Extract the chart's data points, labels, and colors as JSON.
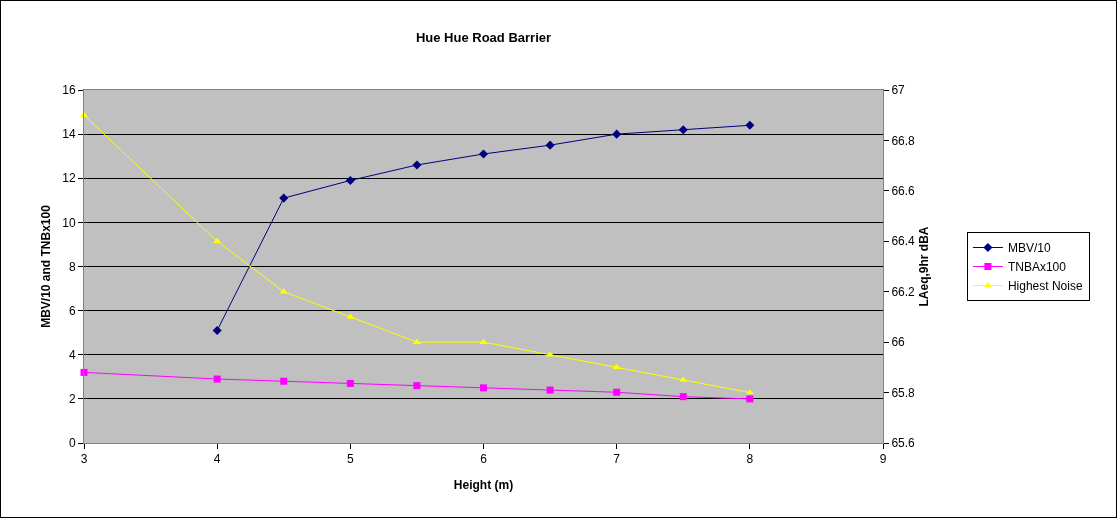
{
  "chart_data": {
    "type": "line",
    "title": "Hue Hue Road Barrier",
    "xlabel": "Height (m)",
    "ylabel": "MBV/10 and TNBx100",
    "y2label": "LAeq,9hr dBA",
    "xlim": [
      3,
      9
    ],
    "xticks": [
      3,
      4,
      5,
      6,
      7,
      8,
      9
    ],
    "ylim": [
      0,
      16
    ],
    "yticks": [
      0,
      2,
      4,
      6,
      8,
      10,
      12,
      14,
      16
    ],
    "y2lim": [
      65.6,
      67
    ],
    "y2ticks": [
      {
        "value": 65.6,
        "label": "65.6"
      },
      {
        "value": 65.8,
        "label": "65.8"
      },
      {
        "value": 66,
        "label": "66"
      },
      {
        "value": 66.2,
        "label": "66.2"
      },
      {
        "value": 66.4,
        "label": "66.4"
      },
      {
        "value": 66.6,
        "label": "66.6"
      },
      {
        "value": 66.8,
        "label": "66.8"
      },
      {
        "value": 67,
        "label": "67"
      }
    ],
    "grid": "y",
    "legend": "right",
    "line_style": "solid",
    "series": [
      {
        "name": "MBV/10",
        "color": "#000080",
        "marker": "diamond",
        "x": [
          4,
          4.5,
          5,
          5.5,
          6,
          6.5,
          7,
          7.5,
          8
        ],
        "values": [
          5.1,
          11.1,
          11.9,
          12.6,
          13.1,
          13.5,
          14.0,
          14.2,
          14.4
        ]
      },
      {
        "name": "TNBAx100",
        "color": "#ff00ff",
        "marker": "square",
        "x": [
          3,
          4,
          4.5,
          5,
          5.5,
          6,
          6.5,
          7,
          7.5,
          8
        ],
        "values": [
          3.2,
          2.9,
          2.8,
          2.7,
          2.6,
          2.5,
          2.4,
          2.3,
          2.1,
          2.0
        ]
      },
      {
        "name": "Highest Noise",
        "color": "#ffff00",
        "marker": "triangle",
        "axis": "y2",
        "x": [
          3,
          4,
          4.5,
          5,
          5.5,
          6,
          6.5,
          7,
          7.5,
          8
        ],
        "values": [
          66.9,
          66.4,
          66.2,
          66.1,
          66.0,
          66.0,
          65.95,
          65.9,
          65.85,
          65.8
        ]
      }
    ]
  }
}
